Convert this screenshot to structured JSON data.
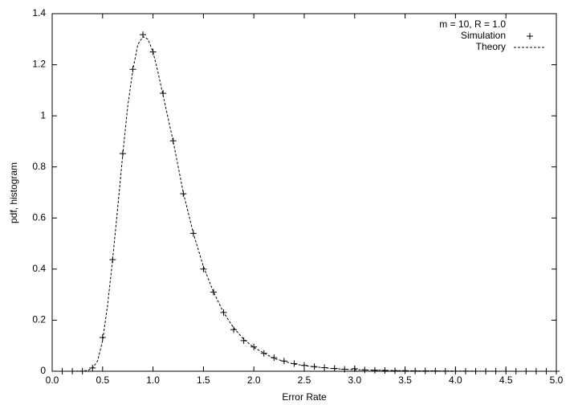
{
  "chart_data": {
    "type": "line",
    "xlabel": "Error Rate",
    "ylabel": "pdf, histogram",
    "legend_title": "m = 10, R = 1.0",
    "legend": "top-right",
    "xlim": [
      0,
      5
    ],
    "ylim": [
      0,
      1.4
    ],
    "xticks": [
      {
        "value": 0,
        "label": "0.0"
      },
      0.5,
      {
        "value": 1,
        "label": "1.0"
      },
      1.5,
      {
        "value": 2,
        "label": "2.0"
      },
      2.5,
      {
        "value": 3,
        "label": "3.0"
      },
      3.5,
      {
        "value": 4,
        "label": "4.0"
      },
      4.5,
      {
        "value": 5,
        "label": "5.0"
      }
    ],
    "yticks": [
      0,
      0.2,
      0.4,
      0.6,
      0.8,
      1,
      1.2,
      1.4
    ],
    "series": [
      {
        "name": "Simulation",
        "color": "#000000",
        "style": "points",
        "x": [
          0.1,
          0.2,
          0.3,
          0.4,
          0.5,
          0.6,
          0.7,
          0.8,
          0.9,
          1.0,
          1.1,
          1.2,
          1.3,
          1.4,
          1.5,
          1.6,
          1.7,
          1.8,
          1.9,
          2.0,
          2.1,
          2.2,
          2.3,
          2.4,
          2.5,
          2.6,
          2.7,
          2.8,
          2.9,
          3.0,
          3.1,
          3.2,
          3.3,
          3.4,
          3.5,
          3.6,
          3.7,
          3.8,
          3.9,
          4.0,
          4.1,
          4.2,
          4.3,
          4.4,
          4.5,
          4.6,
          4.7,
          4.8,
          4.9,
          5.0
        ],
        "values": [
          0,
          0,
          0,
          0.013,
          0.132,
          0.437,
          0.852,
          1.182,
          1.318,
          1.25,
          1.088,
          0.902,
          0.695,
          0.54,
          0.4,
          0.31,
          0.23,
          0.163,
          0.12,
          0.095,
          0.07,
          0.053,
          0.04,
          0.03,
          0.023,
          0.018,
          0.014,
          0.011,
          0.008,
          0.01,
          0.005,
          0.004,
          0.003,
          0.002,
          0.002,
          0.001,
          0.001,
          0.001,
          0,
          0,
          0,
          0,
          0,
          0,
          0,
          0,
          0,
          0,
          0,
          0
        ]
      },
      {
        "name": "Theory",
        "color": "#000000",
        "style": "dashed",
        "x": [
          0,
          0.1,
          0.2,
          0.3,
          0.35,
          0.4,
          0.45,
          0.5,
          0.55,
          0.6,
          0.65,
          0.7,
          0.75,
          0.8,
          0.85,
          0.9,
          0.95,
          1.0,
          1.05,
          1.1,
          1.15,
          1.2,
          1.3,
          1.4,
          1.5,
          1.6,
          1.7,
          1.8,
          1.9,
          2.0,
          2.2,
          2.4,
          2.6,
          2.8,
          3.0,
          3.5,
          4.0,
          4.5,
          5.0
        ],
        "values": [
          0,
          0,
          0,
          0.001,
          0.003,
          0.012,
          0.04,
          0.12,
          0.26,
          0.44,
          0.64,
          0.85,
          1.04,
          1.18,
          1.28,
          1.31,
          1.3,
          1.25,
          1.17,
          1.08,
          0.99,
          0.9,
          0.7,
          0.54,
          0.41,
          0.31,
          0.23,
          0.17,
          0.125,
          0.093,
          0.05,
          0.028,
          0.017,
          0.01,
          0.006,
          0.002,
          0.001,
          0,
          0
        ]
      }
    ]
  }
}
